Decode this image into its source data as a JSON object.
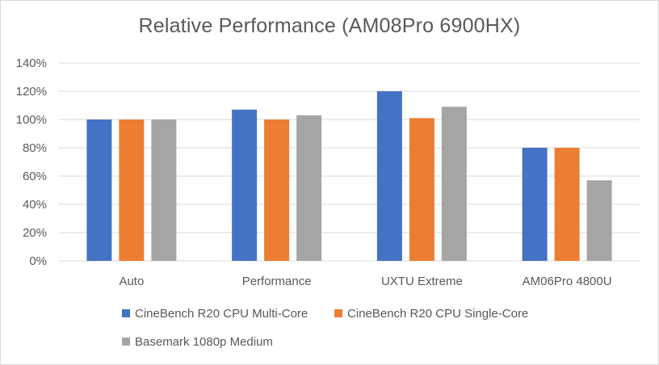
{
  "chart_data": {
    "type": "bar",
    "title": "Relative Performance  (AM08Pro 6900HX)",
    "xlabel": "",
    "ylabel": "",
    "categories": [
      "Auto",
      "Performance",
      "UXTU Extreme",
      "AM06Pro 4800U"
    ],
    "series": [
      {
        "name": "CineBench R20 CPU Multi-Core",
        "color": "#4472c4",
        "values": [
          100,
          107,
          120,
          80
        ]
      },
      {
        "name": "CineBench R20 CPU Single-Core",
        "color": "#ed7d31",
        "values": [
          100,
          100,
          101,
          80
        ]
      },
      {
        "name": "Basemark 1080p Medium",
        "color": "#a5a5a5",
        "values": [
          100,
          103,
          109,
          57
        ]
      }
    ],
    "ylim": [
      0,
      140
    ],
    "yticks": [
      0,
      20,
      40,
      60,
      80,
      100,
      120,
      140
    ],
    "ytick_labels": [
      "0%",
      "20%",
      "40%",
      "60%",
      "80%",
      "100%",
      "120%",
      "140%"
    ],
    "grid": true,
    "legend_position": "bottom"
  }
}
